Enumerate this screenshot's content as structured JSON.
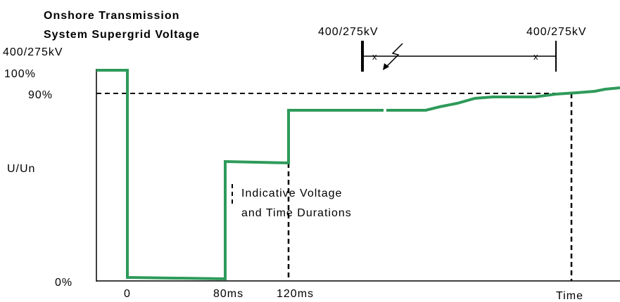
{
  "title": {
    "lines": [
      "Onshore Transmission",
      "System Supergrid Voltage"
    ],
    "subtitle": "400/275kV"
  },
  "y_labels": {
    "top": "100%",
    "threshold": "90%",
    "axis": "U/Un",
    "bottom": "0%"
  },
  "x_labels": [
    "0",
    "80ms",
    "120ms",
    "Time"
  ],
  "network": {
    "left_bus": "400/275kV",
    "right_bus": "400/275kV",
    "markers": [
      "x",
      "x"
    ]
  },
  "annotation": [
    "Indicative Voltage",
    "and Time Durations"
  ]
}
